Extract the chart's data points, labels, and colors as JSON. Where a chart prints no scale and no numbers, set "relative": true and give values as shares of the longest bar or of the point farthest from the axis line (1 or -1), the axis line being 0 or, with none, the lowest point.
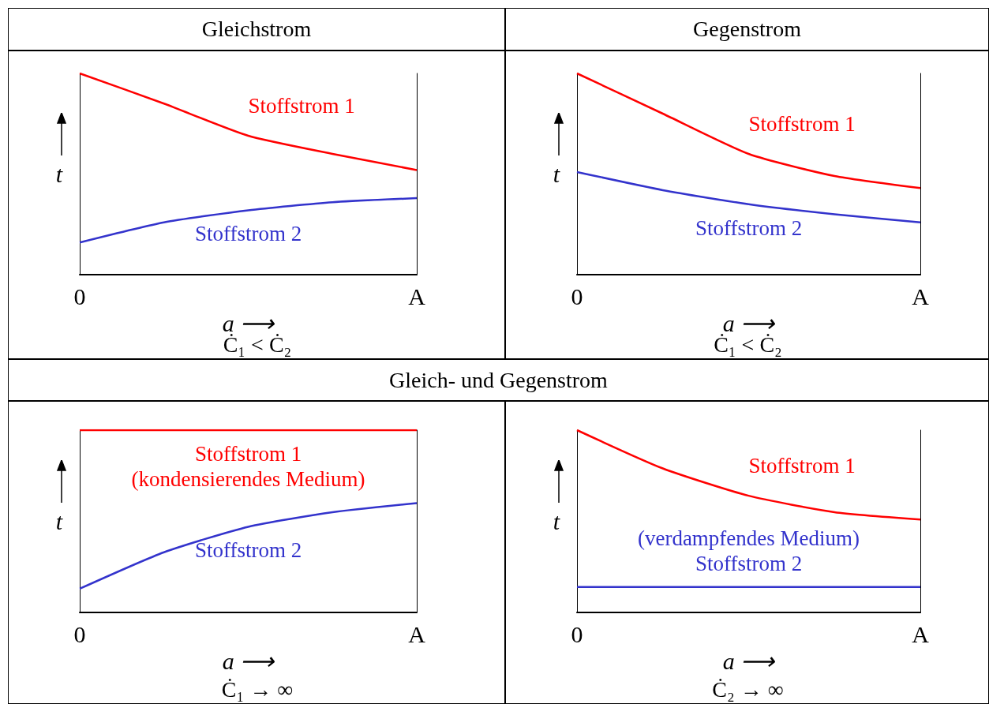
{
  "chart_data": [
    {
      "type": "line",
      "title": "Gleichstrom",
      "relative": true,
      "xlabel": "a ⟶",
      "ylabel": "t",
      "categories": [
        "0",
        null,
        null,
        null,
        "A"
      ],
      "legend": false,
      "marker": "none",
      "annotations": [
        "Ċ₁ < Ċ₂"
      ],
      "series": [
        {
          "name": "Stoffstrom 1",
          "color": "#ff0000",
          "values": [
            1,
            0.85,
            0.69,
            0.6,
            0.52
          ]
        },
        {
          "name": "Stoffstrom 2",
          "color": "#3333cc",
          "values": [
            0.16,
            0.26,
            0.32,
            0.36,
            0.38
          ]
        }
      ]
    },
    {
      "type": "line",
      "title": "Gegenstrom",
      "relative": true,
      "xlabel": "a ⟶",
      "ylabel": "t",
      "categories": [
        "0",
        null,
        null,
        null,
        "A"
      ],
      "legend": false,
      "marker": "none",
      "annotations": [
        "Ċ₁ < Ċ₂"
      ],
      "series": [
        {
          "name": "Stoffstrom 1",
          "color": "#ff0000",
          "values": [
            1,
            0.8,
            0.6,
            0.49,
            0.43
          ]
        },
        {
          "name": "Stoffstrom 2",
          "color": "#3333cc",
          "values": [
            0.51,
            0.42,
            0.35,
            0.3,
            0.26
          ]
        }
      ]
    },
    {
      "type": "line",
      "title": "Gleich- und Gegenstrom",
      "relative": true,
      "xlabel": "a ⟶",
      "ylabel": "t",
      "categories": [
        "0",
        null,
        null,
        null,
        "A"
      ],
      "legend": false,
      "marker": "none",
      "annotations": [
        "Ċ₁ → ∞"
      ],
      "series": [
        {
          "name": "Stoffstrom 1\n(kondensierendes Medium)",
          "color": "#ff0000",
          "values": [
            1,
            1,
            1,
            1,
            1
          ]
        },
        {
          "name": "Stoffstrom 2",
          "color": "#3333cc",
          "values": [
            0.13,
            0.33,
            0.47,
            0.55,
            0.6
          ]
        }
      ]
    },
    {
      "type": "line",
      "relative": true,
      "xlabel": "a ⟶",
      "ylabel": "t",
      "categories": [
        "0",
        null,
        null,
        null,
        "A"
      ],
      "legend": false,
      "marker": "none",
      "annotations": [
        "Ċ₂ → ∞"
      ],
      "series": [
        {
          "name": "Stoffstrom 1",
          "color": "#ff0000",
          "values": [
            1,
            0.79,
            0.64,
            0.55,
            0.51
          ]
        },
        {
          "name": "(verdampfendes Medium)\nStoffstrom 2",
          "color": "#3333cc",
          "values": [
            0.14,
            0.14,
            0.14,
            0.14,
            0.14
          ]
        }
      ]
    }
  ]
}
